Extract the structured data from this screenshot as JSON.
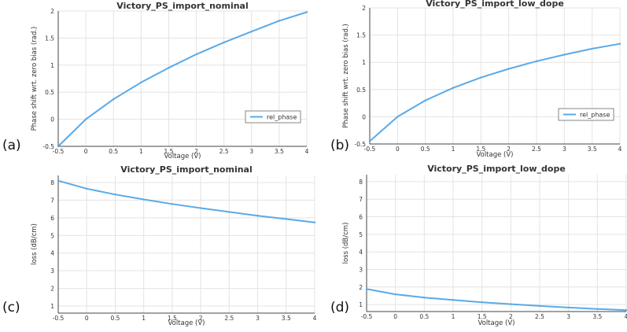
{
  "chart_data": [
    {
      "type": "line",
      "title": "Victory_PS_import_nominal",
      "xlabel": "Voltage (V)",
      "ylabel": "Phase shift wrt. zero bias (rad.)",
      "panel_label": "(a)",
      "xlim": [
        -0.5,
        4
      ],
      "ylim": [
        -0.5,
        2
      ],
      "xticks": [
        "-0.5",
        "0",
        "0.5",
        "1",
        "1.5",
        "2",
        "2.5",
        "3",
        "3.5",
        "4"
      ],
      "yticks": [
        "-0.5",
        "0",
        "0.5",
        "1",
        "1.5",
        "2"
      ],
      "grid": true,
      "legend": "bottom-right",
      "series": [
        {
          "name": "rel_phase",
          "color": "#5aaae8",
          "x": [
            -0.5,
            0,
            0.5,
            1,
            1.5,
            2,
            2.5,
            3,
            3.5,
            4
          ],
          "y": [
            -0.5,
            0,
            0.37,
            0.68,
            0.95,
            1.2,
            1.42,
            1.62,
            1.82,
            1.98
          ]
        }
      ]
    },
    {
      "type": "line",
      "title": "Victory_PS_import_low_dope",
      "xlabel": "Voltage (V)",
      "ylabel": "Phase shift wrt. zero bias (rad.)",
      "panel_label": "(b)",
      "xlim": [
        -0.5,
        4
      ],
      "ylim": [
        -0.5,
        2
      ],
      "xticks": [
        "-0.5",
        "0",
        "0.5",
        "1",
        "1.5",
        "2",
        "2.5",
        "3",
        "3.5",
        "4"
      ],
      "yticks": [
        "-0.5",
        "0",
        "0.5",
        "1",
        "1.5",
        "2"
      ],
      "grid": true,
      "legend": "bottom-right",
      "series": [
        {
          "name": "rel_phase",
          "color": "#5aaae8",
          "x": [
            -0.5,
            0,
            0.5,
            1,
            1.5,
            2,
            2.5,
            3,
            3.5,
            4
          ],
          "y": [
            -0.45,
            0,
            0.3,
            0.53,
            0.72,
            0.88,
            1.02,
            1.14,
            1.25,
            1.34
          ]
        }
      ]
    },
    {
      "type": "line",
      "title": "Victory_PS_import_nominal",
      "xlabel": "Voltage (V)",
      "ylabel": "loss (dB/cm)",
      "panel_label": "(c)",
      "xlim": [
        -0.5,
        4
      ],
      "ylim": [
        0.6,
        8.4
      ],
      "xticks": [
        "-0.5",
        "0",
        "0.5",
        "1",
        "1.5",
        "2",
        "2.5",
        "3",
        "3.5",
        "4"
      ],
      "yticks": [
        "1",
        "2",
        "3",
        "4",
        "5",
        "6",
        "7",
        "8"
      ],
      "grid": true,
      "legend": "none",
      "series": [
        {
          "color": "#5aaae8",
          "x": [
            -0.5,
            0,
            0.5,
            1,
            1.5,
            2,
            2.5,
            3,
            3.5,
            4
          ],
          "y": [
            8.1,
            7.65,
            7.32,
            7.04,
            6.78,
            6.55,
            6.33,
            6.12,
            5.93,
            5.74
          ]
        }
      ]
    },
    {
      "type": "line",
      "title": "Victory_PS_import_low_dope",
      "xlabel": "Voltage (V)",
      "ylabel": "loss (dB/cm)",
      "panel_label": "(d)",
      "xlim": [
        -0.5,
        4
      ],
      "ylim": [
        0.6,
        8.4
      ],
      "xticks": [
        "-0.5",
        "0",
        "0.5",
        "1",
        "1.5",
        "2",
        "2.5",
        "3",
        "3.5",
        "4"
      ],
      "yticks": [
        "1",
        "2",
        "3",
        "4",
        "5",
        "6",
        "7",
        "8"
      ],
      "grid": true,
      "legend": "none",
      "series": [
        {
          "color": "#5aaae8",
          "x": [
            -0.5,
            0,
            0.5,
            1,
            1.5,
            2,
            2.5,
            3,
            3.5,
            4
          ],
          "y": [
            1.88,
            1.58,
            1.4,
            1.26,
            1.13,
            1.02,
            0.92,
            0.83,
            0.75,
            0.68
          ]
        }
      ]
    }
  ]
}
